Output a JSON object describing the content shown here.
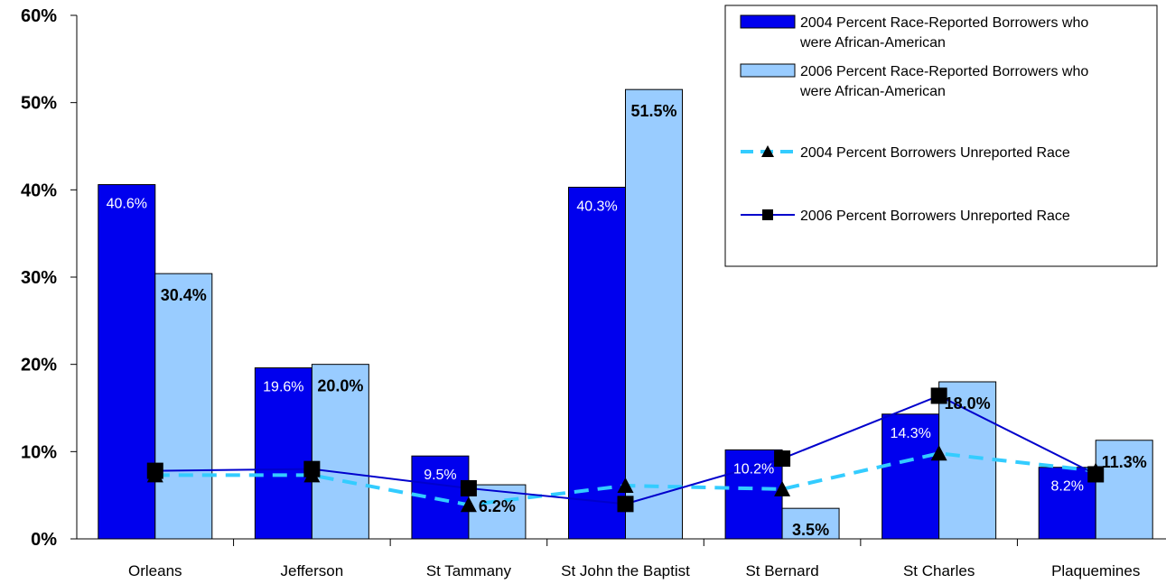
{
  "chart_data": {
    "type": "bar",
    "categories": [
      "Orleans",
      "Jefferson",
      "St Tammany",
      "St John the Baptist",
      "St Bernard",
      "St Charles",
      "Plaquemines"
    ],
    "y_ticks": [
      "0%",
      "10%",
      "20%",
      "30%",
      "40%",
      "50%",
      "60%"
    ],
    "ylim": [
      0,
      60
    ],
    "legend_position": "top-right",
    "series": [
      {
        "name_lines": [
          "2004 Percent Race-Reported Borrowers who",
          "were African-American"
        ],
        "kind": "bar",
        "color": "#0000ee",
        "values": [
          40.6,
          19.6,
          9.5,
          40.3,
          10.2,
          14.3,
          8.2
        ],
        "labels": [
          "40.6%",
          "19.6%",
          "9.5%",
          "40.3%",
          "10.2%",
          "14.3%",
          "8.2%"
        ]
      },
      {
        "name_lines": [
          "2006 Percent Race-Reported Borrowers who",
          "were African-American"
        ],
        "kind": "bar",
        "color": "#99ccff",
        "values": [
          30.4,
          20.0,
          6.2,
          51.5,
          3.5,
          18.0,
          11.3
        ],
        "labels": [
          "30.4%",
          "20.0%",
          "6.2%",
          "51.5%",
          "3.5%",
          "18.0%",
          "11.3%"
        ]
      },
      {
        "name_lines": [
          "2004 Percent Borrowers Unreported Race"
        ],
        "kind": "line-dashed-triangle",
        "color": "#33ccff",
        "values": [
          7.3,
          7.3,
          3.9,
          6.1,
          5.7,
          9.8,
          7.8
        ]
      },
      {
        "name_lines": [
          "2006 Percent Borrowers Unreported Race"
        ],
        "kind": "line-square",
        "color": "#0000cc",
        "values": [
          7.8,
          8.0,
          5.8,
          4.0,
          9.2,
          16.4,
          7.4
        ]
      }
    ]
  }
}
